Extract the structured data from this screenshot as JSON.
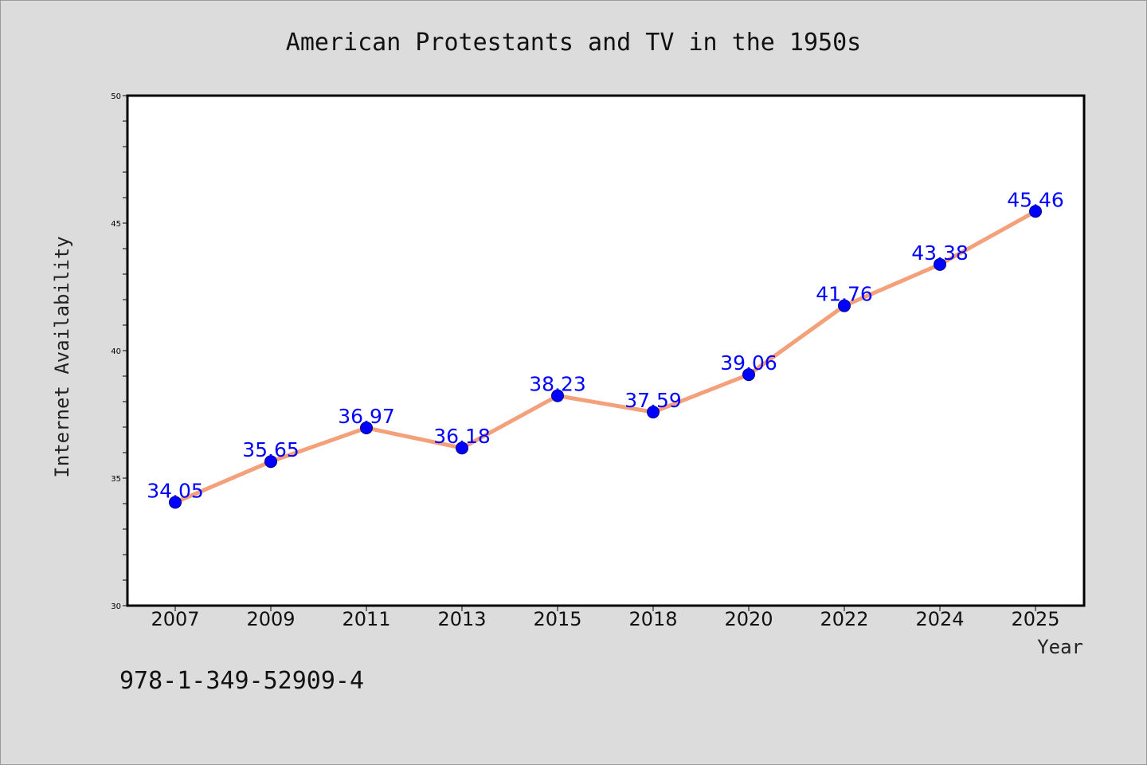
{
  "chart_data": {
    "type": "line",
    "title": "American Protestants and TV in the 1950s",
    "xlabel": "Year",
    "ylabel": "Internet Availability",
    "categories": [
      "2007",
      "2009",
      "2011",
      "2013",
      "2015",
      "2018",
      "2020",
      "2022",
      "2024",
      "2025"
    ],
    "series": [
      {
        "values": [
          34.05,
          35.65,
          36.97,
          36.18,
          38.23,
          37.59,
          39.06,
          41.76,
          43.38,
          45.46
        ],
        "data_labels": [
          "34.05",
          "35.65",
          "36.97",
          "36.18",
          "38.23",
          "37.59",
          "39.06",
          "41.76",
          "43.38",
          "45.46"
        ],
        "line_color": "#f4a07a",
        "marker_color": "#0000ff"
      }
    ],
    "ylim": [
      30,
      50
    ],
    "yticks": [
      "30",
      "35",
      "40",
      "45",
      "50"
    ],
    "grid": false,
    "legend": false
  },
  "footer": {
    "isbn": "978-1-349-52909-4"
  },
  "colors": {
    "background": "#dcdcdc",
    "plot_background": "#ffffff",
    "line": "#f4a07a",
    "marker": "#0000ff",
    "data_label": "#0000ff"
  }
}
